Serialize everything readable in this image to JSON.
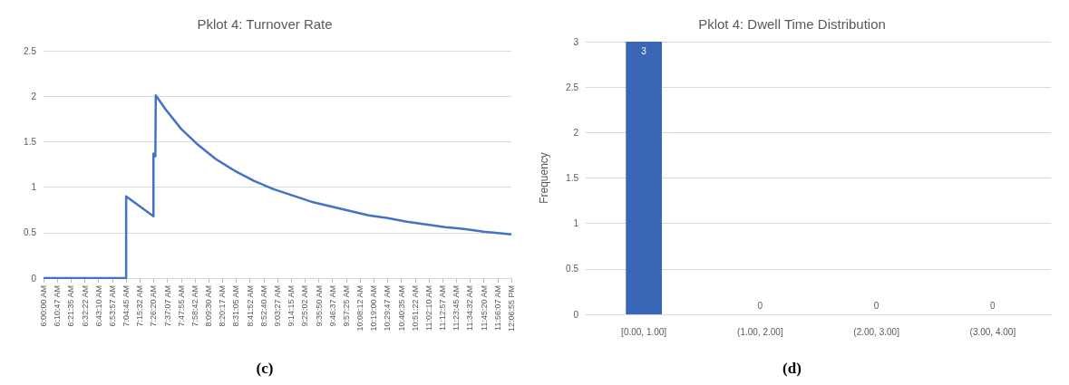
{
  "chart_data": [
    {
      "type": "line",
      "title": "Pklot 4: Turnover Rate",
      "annotations": [
        "(c)"
      ],
      "color": "#4472c4",
      "grid": "y",
      "marker": "none",
      "line_style": "solid",
      "x": [
        6,
        7.08,
        7.08,
        7.437,
        7.437,
        7.462,
        7.467,
        7.6,
        7.8,
        8.0,
        8.25,
        8.5,
        8.75,
        9.0,
        9.25,
        9.5,
        9.75,
        10.0,
        10.25,
        10.5,
        10.75,
        11.0,
        11.25,
        11.5,
        11.75,
        12.0,
        12.1153
      ],
      "values": [
        0,
        0,
        0.9,
        0.68,
        1.37,
        1.34,
        2.01,
        1.85,
        1.64,
        1.48,
        1.31,
        1.18,
        1.07,
        0.98,
        0.91,
        0.84,
        0.79,
        0.74,
        0.69,
        0.66,
        0.62,
        0.59,
        0.56,
        0.54,
        0.51,
        0.49,
        0.48
      ],
      "xlim": [
        6,
        12.1153
      ],
      "xticks": [
        {
          "value": 6,
          "label": "6:00:00 AM"
        },
        {
          "value": 6.1797,
          "label": "6:10:47 AM"
        },
        {
          "value": 6.3597,
          "label": "6:21:35 AM"
        },
        {
          "value": 6.5394,
          "label": "6:32:22 AM"
        },
        {
          "value": 6.7194,
          "label": "6:43:10 AM"
        },
        {
          "value": 6.8992,
          "label": "6:53:57 AM"
        },
        {
          "value": 7.0792,
          "label": "7:04:45 AM"
        },
        {
          "value": 7.2589,
          "label": "7:15:32 AM"
        },
        {
          "value": 7.4389,
          "label": "7:26:20 AM"
        },
        {
          "value": 7.6186,
          "label": "7:37:07 AM"
        },
        {
          "value": 7.7986,
          "label": "7:47:55 AM"
        },
        {
          "value": 7.9783,
          "label": "7:58:42 AM"
        },
        {
          "value": 8.1583,
          "label": "8:09:30 AM"
        },
        {
          "value": 8.3381,
          "label": "8:20:17 AM"
        },
        {
          "value": 8.5181,
          "label": "8:31:05 AM"
        },
        {
          "value": 8.6978,
          "label": "8:41:52 AM"
        },
        {
          "value": 8.8778,
          "label": "8:52:40 AM"
        },
        {
          "value": 9.0575,
          "label": "9:03:27 AM"
        },
        {
          "value": 9.2375,
          "label": "9:14:15 AM"
        },
        {
          "value": 9.4172,
          "label": "9:25:02 AM"
        },
        {
          "value": 9.5972,
          "label": "9:35:50 AM"
        },
        {
          "value": 9.7769,
          "label": "9:46:37 AM"
        },
        {
          "value": 9.9569,
          "label": "9:57:25 AM"
        },
        {
          "value": 10.1367,
          "label": "10:08:12 AM"
        },
        {
          "value": 10.3167,
          "label": "10:19:00 AM"
        },
        {
          "value": 10.4964,
          "label": "10:29:47 AM"
        },
        {
          "value": 10.6764,
          "label": "10:40:35 AM"
        },
        {
          "value": 10.8561,
          "label": "10:51:22 AM"
        },
        {
          "value": 11.0361,
          "label": "11:02:10 AM"
        },
        {
          "value": 11.2158,
          "label": "11:12:57 AM"
        },
        {
          "value": 11.3958,
          "label": "11:23:45 AM"
        },
        {
          "value": 11.5756,
          "label": "11:34:32 AM"
        },
        {
          "value": 11.7556,
          "label": "11:45:20 AM"
        },
        {
          "value": 11.9353,
          "label": "11:56:07 AM"
        },
        {
          "value": 12.1153,
          "label": "12:06:55 PM"
        }
      ],
      "ylim": [
        0,
        2.5
      ],
      "yticks": [
        0,
        0.5,
        1,
        1.5,
        2,
        2.5
      ]
    },
    {
      "type": "bar",
      "title": "Pklot 4: Dwell Time Distribution",
      "ylabel": "Frequency",
      "annotations": [
        "(d)"
      ],
      "color": "#3a66b8",
      "grid": "y",
      "data_labels": true,
      "categories": [
        "[0.00, 1.00]",
        "(1.00, 2.00]",
        "(2.00, 3.00]",
        "(3.00, 4.00]"
      ],
      "values": [
        3,
        0,
        0,
        0
      ],
      "ylim": [
        0,
        3
      ],
      "yticks": [
        0,
        0.5,
        1,
        1.5,
        2,
        2.5,
        3
      ]
    }
  ]
}
